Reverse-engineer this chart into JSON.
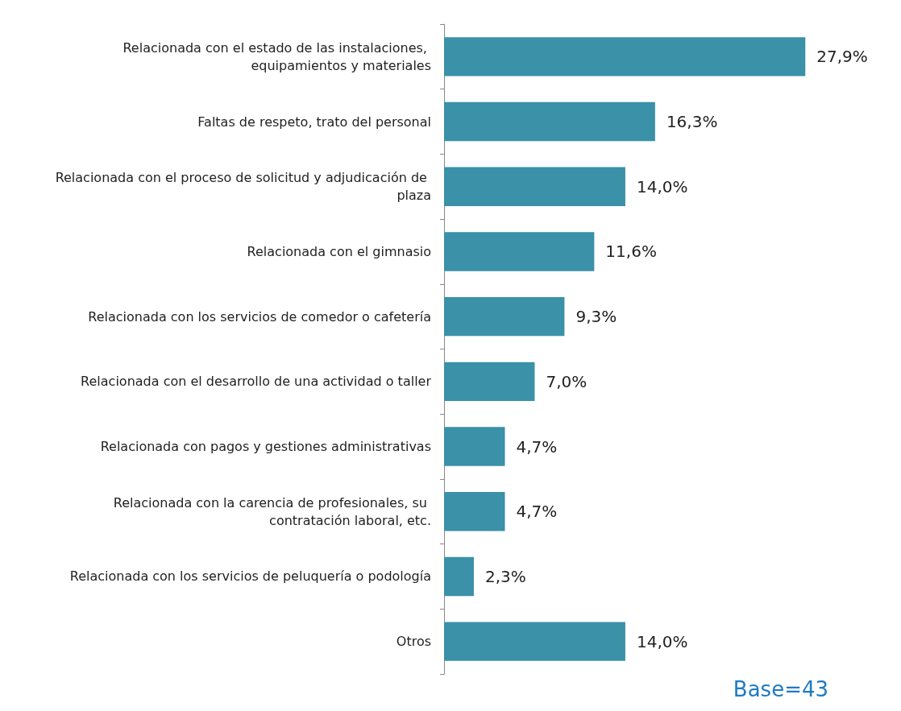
{
  "chart_data": {
    "type": "bar",
    "orientation": "horizontal",
    "categories": [
      "Relacionada con el estado de las instalaciones, equipamientos y materiales",
      "Faltas de respeto, trato del personal",
      "Relacionada con el proceso de solicitud y adjudicación de plaza",
      "Relacionada con el gimnasio",
      "Relacionada con los servicios de comedor o cafetería",
      "Relacionada con el desarrollo de una actividad o taller",
      "Relacionada con pagos y gestiones administrativas",
      "Relacionada con la carencia de profesionales, su contratación laboral, etc.",
      "Relacionada con los servicios de peluquería o podología",
      "Otros"
    ],
    "values": [
      27.9,
      16.3,
      14.0,
      11.6,
      9.3,
      7.0,
      4.7,
      4.7,
      2.3,
      14.0
    ],
    "value_labels": [
      "27,9%",
      "16,3%",
      "14,0%",
      "11,6%",
      "9,3%",
      "7,0%",
      "4,7%",
      "4,7%",
      "2,3%",
      "14,0%"
    ],
    "color": "#3a91a8",
    "annotations": [
      "Base=43"
    ]
  }
}
